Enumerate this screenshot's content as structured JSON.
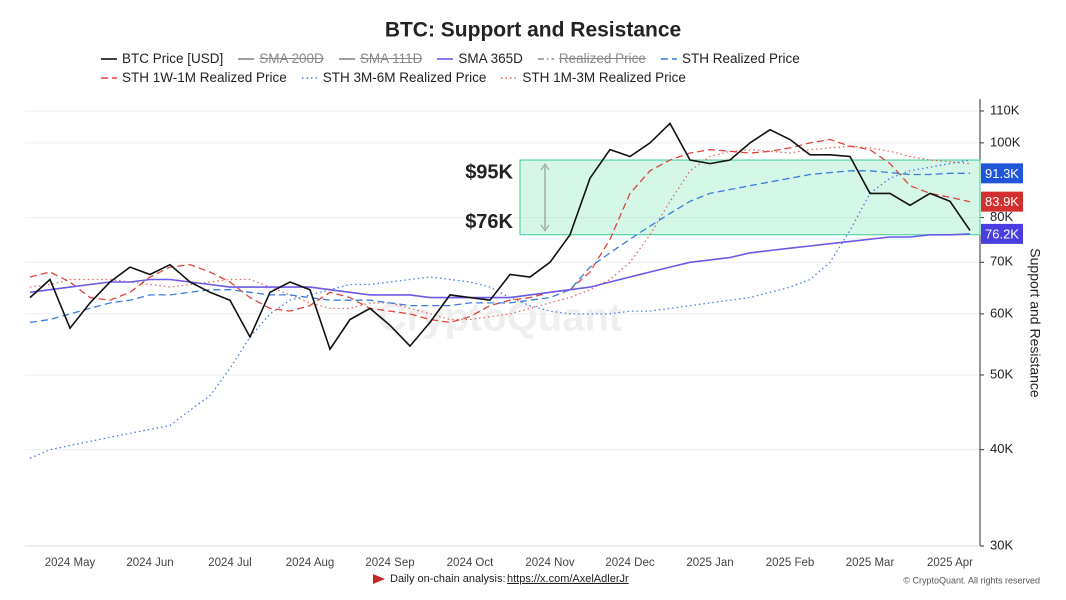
{
  "chart_data": {
    "type": "line",
    "title": "BTC: Support and Resistance",
    "y_label": "Support and Resistance",
    "log_scale": true,
    "grid": true,
    "watermark": "CryptoQuant",
    "footer": {
      "note": "Daily on-chain analysis: ",
      "link": "https://x.com/AxelAdlerJr",
      "copyright": "© CryptoQuant. All rights reserved"
    },
    "ylim": [
      30000,
      114000
    ],
    "yticks": [
      {
        "value": 30000,
        "label": "30K"
      },
      {
        "value": 40000,
        "label": "40K"
      },
      {
        "value": 50000,
        "label": "50K"
      },
      {
        "value": 60000,
        "label": "60K"
      },
      {
        "value": 70000,
        "label": "70K"
      },
      {
        "value": 80000,
        "label": "80K"
      },
      {
        "value": 100000,
        "label": "100K"
      },
      {
        "value": 110000,
        "label": "110K"
      }
    ],
    "categories": [
      null,
      null,
      "2024 May",
      null,
      null,
      null,
      "2024 Jun",
      null,
      null,
      null,
      "2024 Jul",
      null,
      null,
      null,
      "2024 Aug",
      null,
      null,
      null,
      "2024 Sep",
      null,
      null,
      null,
      "2024 Oct",
      null,
      null,
      null,
      "2024 Nov",
      null,
      null,
      null,
      "2024 Dec",
      null,
      null,
      null,
      "2025 Jan",
      null,
      null,
      null,
      "2025 Feb",
      null,
      null,
      null,
      "2025 Mar",
      null,
      null,
      null,
      "2025 Apr",
      null
    ],
    "zone": {
      "high": {
        "value": 95000,
        "label": "$95K"
      },
      "low": {
        "value": 76000,
        "label": "$76K"
      }
    },
    "tags": [
      {
        "value": 91300,
        "label": "91.3K",
        "color": "#1f55d6"
      },
      {
        "value": 83900,
        "label": "83.9K",
        "color": "#d42f2f"
      },
      {
        "value": 76200,
        "label": "76.2K",
        "color": "#4a3ee0"
      }
    ],
    "series": [
      {
        "name": "BTC Price [USD]",
        "color": "#111111",
        "style": "solid",
        "hidden": false,
        "values": [
          63000,
          66500,
          57500,
          62000,
          66000,
          69000,
          67500,
          69500,
          66000,
          64000,
          62500,
          56000,
          64000,
          66000,
          64500,
          54000,
          59000,
          61000,
          58000,
          54500,
          58500,
          63500,
          63000,
          62500,
          67500,
          67000,
          70000,
          76000,
          90000,
          98000,
          96000,
          100000,
          106000,
          95000,
          94000,
          95000,
          100000,
          104000,
          101000,
          96500,
          96500,
          96000,
          86000,
          86000,
          83000,
          86000,
          84000,
          77000
        ]
      },
      {
        "name": "SMA 200D",
        "color": "#888888",
        "style": "solid",
        "hidden": true
      },
      {
        "name": "SMA 111D",
        "color": "#888888",
        "style": "solid",
        "hidden": true
      },
      {
        "name": "SMA 365D",
        "color": "#6a5ae6",
        "style": "solid",
        "hidden": false,
        "values": [
          64000,
          64500,
          65000,
          65500,
          66000,
          66000,
          66500,
          66500,
          66000,
          65500,
          65000,
          65000,
          65000,
          65000,
          65000,
          64500,
          64000,
          63500,
          63500,
          63500,
          63000,
          63000,
          63000,
          63000,
          63000,
          63500,
          64000,
          64500,
          65000,
          66000,
          67000,
          68000,
          69000,
          70000,
          70500,
          71000,
          72000,
          72500,
          73000,
          73500,
          74000,
          74500,
          75000,
          75500,
          75500,
          76000,
          76000,
          76200
        ]
      },
      {
        "name": "Realized Price",
        "color": "#888888",
        "style": "dashdot",
        "hidden": true
      },
      {
        "name": "STH Realized Price",
        "color": "#3b7ddd",
        "style": "dashed",
        "hidden": false,
        "values": [
          58500,
          59000,
          60000,
          61000,
          62000,
          62500,
          63500,
          63500,
          64000,
          64500,
          64500,
          64000,
          63500,
          63500,
          63000,
          62500,
          62500,
          62500,
          62000,
          61500,
          61500,
          61500,
          62000,
          62000,
          62000,
          62500,
          63000,
          64500,
          69000,
          72000,
          75000,
          78000,
          81000,
          84000,
          86000,
          87000,
          88000,
          89000,
          90000,
          91000,
          91500,
          92000,
          92000,
          91500,
          91000,
          91000,
          91300,
          91300
        ]
      },
      {
        "name": "STH 1W-1M Realized Price",
        "color": "#e0443a",
        "style": "dashed",
        "hidden": false,
        "values": [
          67000,
          68000,
          66000,
          63000,
          62500,
          64000,
          67000,
          69000,
          69500,
          68000,
          66000,
          63000,
          61000,
          60500,
          61500,
          64000,
          63000,
          61000,
          60500,
          60000,
          59000,
          58500,
          59500,
          61500,
          62500,
          63000,
          64000,
          64500,
          68000,
          75000,
          86000,
          92000,
          95000,
          97000,
          98000,
          97500,
          97000,
          97500,
          98500,
          100000,
          101000,
          99000,
          98000,
          94000,
          88000,
          86000,
          85000,
          83900
        ]
      },
      {
        "name": "STH 3M-6M Realized Price",
        "color": "#4a7de0",
        "style": "dotted",
        "hidden": false,
        "values": [
          39000,
          40000,
          40500,
          41000,
          41500,
          42000,
          42500,
          43000,
          45000,
          47000,
          51000,
          56000,
          60000,
          62500,
          63500,
          64500,
          65500,
          65500,
          66000,
          66500,
          67000,
          66500,
          66000,
          65000,
          63000,
          61500,
          60500,
          60000,
          60000,
          60000,
          60500,
          60500,
          61000,
          61500,
          62000,
          62500,
          63000,
          64000,
          65000,
          66500,
          70000,
          77000,
          86000,
          90000,
          92000,
          93000,
          94000,
          95000
        ]
      },
      {
        "name": "STH 1M-3M Realized Price",
        "color": "#e06666",
        "style": "dotted",
        "hidden": false,
        "values": [
          65000,
          65500,
          66500,
          66500,
          66500,
          66000,
          65500,
          65000,
          65500,
          66000,
          66500,
          66500,
          65000,
          63500,
          62000,
          61000,
          61000,
          62000,
          62000,
          61000,
          60000,
          59000,
          59000,
          59500,
          60000,
          61000,
          62000,
          63000,
          64500,
          66500,
          70000,
          76000,
          84000,
          92000,
          96000,
          97500,
          98000,
          97500,
          97000,
          98000,
          98500,
          99000,
          98500,
          97500,
          96000,
          95000,
          94500,
          94000
        ]
      }
    ]
  }
}
